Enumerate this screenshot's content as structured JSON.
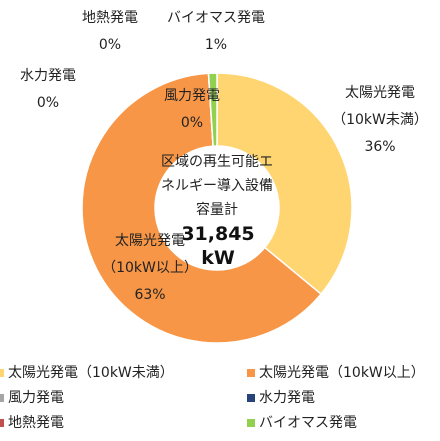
{
  "chart_data": {
    "type": "donut",
    "categories": [
      "太陽光発電（10kW未満）",
      "太陽光発電（10kW以上）",
      "風力発電",
      "水力発電",
      "地熱発電",
      "バイオマス発電"
    ],
    "values": [
      36,
      63,
      0,
      0,
      0,
      1
    ],
    "value_labels": [
      "36%",
      "63%",
      "0%",
      "0%",
      "0%",
      "1%"
    ],
    "colors": [
      "#ffd571",
      "#f79646",
      "#a5a5a5",
      "#264478",
      "#c0504d",
      "#92d050"
    ],
    "center_label": "区域の再生可能エネルギー導入設備容量計",
    "center_value": "31,845 kW",
    "legend": "bottom"
  }
}
